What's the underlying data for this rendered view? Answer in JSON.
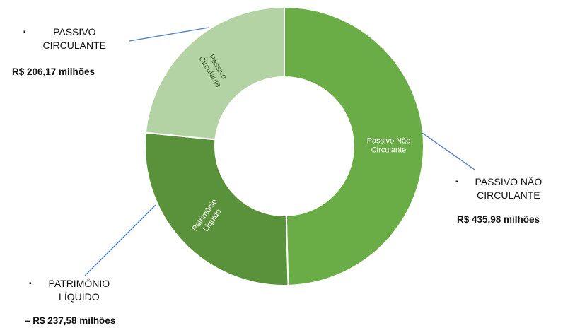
{
  "chart_data": {
    "type": "donut",
    "series": [
      {
        "label": "Passivo Não Circulante",
        "label_lines": [
          "Passivo Não",
          "Circulante"
        ],
        "value": 435.98,
        "color": "#6aac45"
      },
      {
        "label": "Patrimônio Líquido",
        "label_lines": [
          "Patrimônio",
          "Líquido"
        ],
        "value": 237.58,
        "color": "#5a913b"
      },
      {
        "label": "Passivo Circulante",
        "label_lines": [
          "Passivo",
          "Circulante"
        ],
        "value": 206.17,
        "color": "#b4d3a4"
      }
    ],
    "leader_line_color": "#4a7fc8",
    "annotations": {
      "passivo_circulante": {
        "bullet": "▪",
        "name_line1": "PASSIVO",
        "name_line2": "CIRCULANTE",
        "value": "R$ 206,17 milhões"
      },
      "passivo_nao_circulante": {
        "bullet": "▪",
        "name_line1": "PASSIVO NÃO",
        "name_line2": "CIRCULANTE",
        "value": "R$ 435,98 milhões"
      },
      "patrimonio_liquido": {
        "bullet": "▪",
        "name_line1": "PATRIMÔNIO",
        "name_line2": "LÍQUIDO",
        "value": "– R$ 237,58 milhões"
      }
    }
  }
}
